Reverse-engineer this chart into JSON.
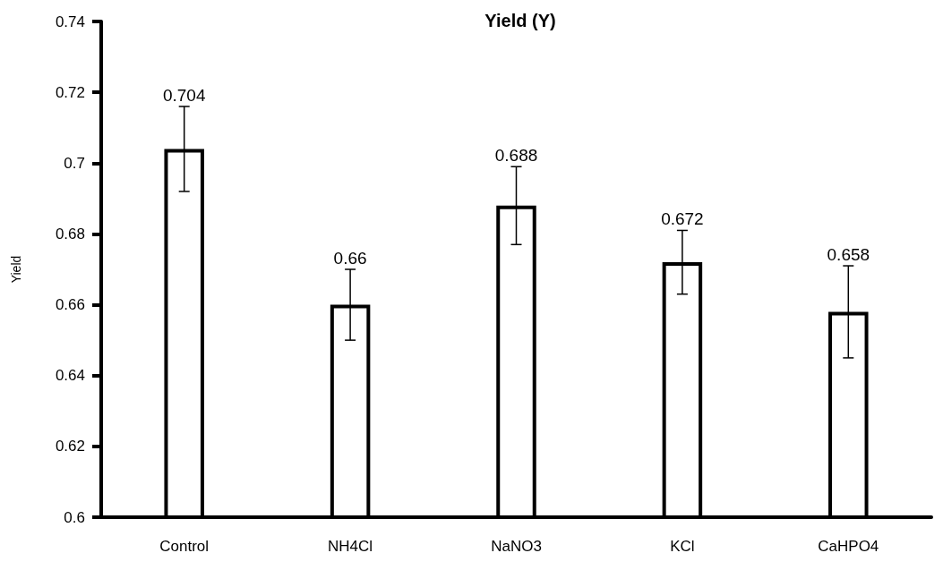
{
  "chart_data": {
    "type": "bar",
    "title": "Yield (Y)",
    "ylabel": "Yield",
    "categories": [
      "Control",
      "NH4Cl",
      "NaNO3",
      "KCl",
      "CaHPO4"
    ],
    "values": [
      0.704,
      0.66,
      0.688,
      0.672,
      0.658
    ],
    "errors": [
      0.012,
      0.01,
      0.011,
      0.009,
      0.013
    ],
    "color": "#ffffff",
    "ylim": [
      0.6,
      0.74
    ],
    "yticks": [
      0.6,
      0.62,
      0.64,
      0.66,
      0.68,
      0.7,
      0.72,
      0.74
    ],
    "data_labels": true,
    "grid": false
  }
}
